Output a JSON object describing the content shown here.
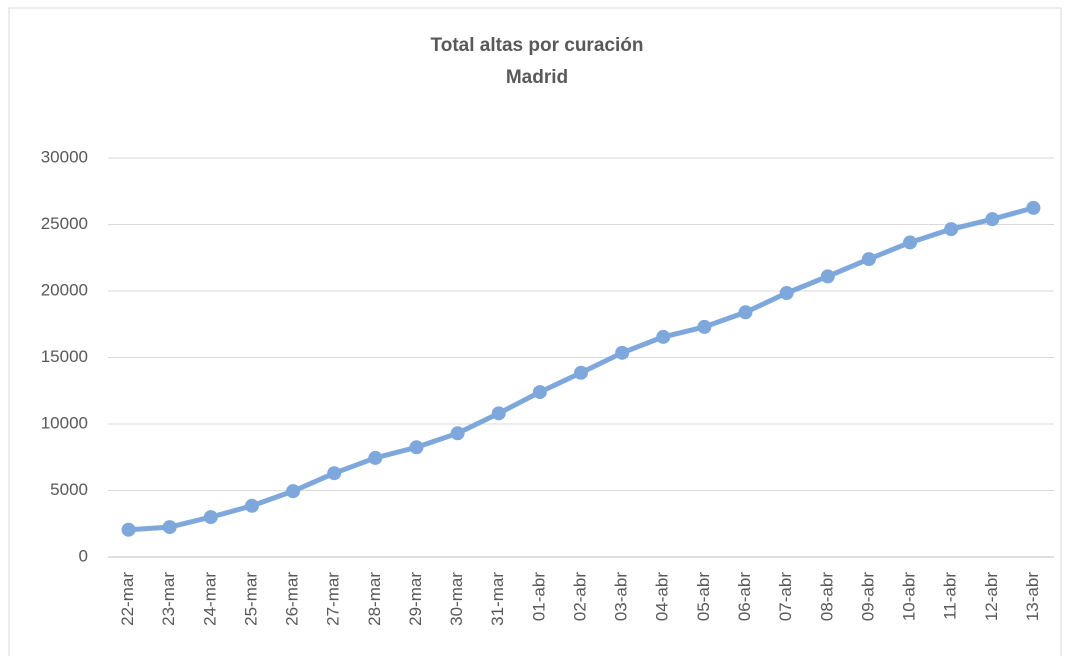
{
  "chart_data": {
    "type": "line",
    "title": "Total altas por curación",
    "subtitle": "Madrid",
    "categories": [
      "22-mar",
      "23-mar",
      "24-mar",
      "25-mar",
      "26-mar",
      "27-mar",
      "28-mar",
      "29-mar",
      "30-mar",
      "31-mar",
      "01-abr",
      "02-abr",
      "03-abr",
      "04-abr",
      "05-abr",
      "06-abr",
      "07-abr",
      "08-abr",
      "09-abr",
      "10-abr",
      "11-abr",
      "12-abr",
      "13-abr"
    ],
    "values": [
      2050,
      2250,
      3000,
      3850,
      4950,
      6300,
      7450,
      8250,
      9300,
      10800,
      12400,
      13850,
      15350,
      16550,
      17300,
      18400,
      19850,
      21100,
      22400,
      23650,
      24650,
      25400,
      26250
    ],
    "color": "#7ea7dc",
    "ylim": [
      0,
      30000
    ],
    "yticks": [
      0,
      5000,
      10000,
      15000,
      20000,
      25000,
      30000
    ],
    "grid": true
  }
}
